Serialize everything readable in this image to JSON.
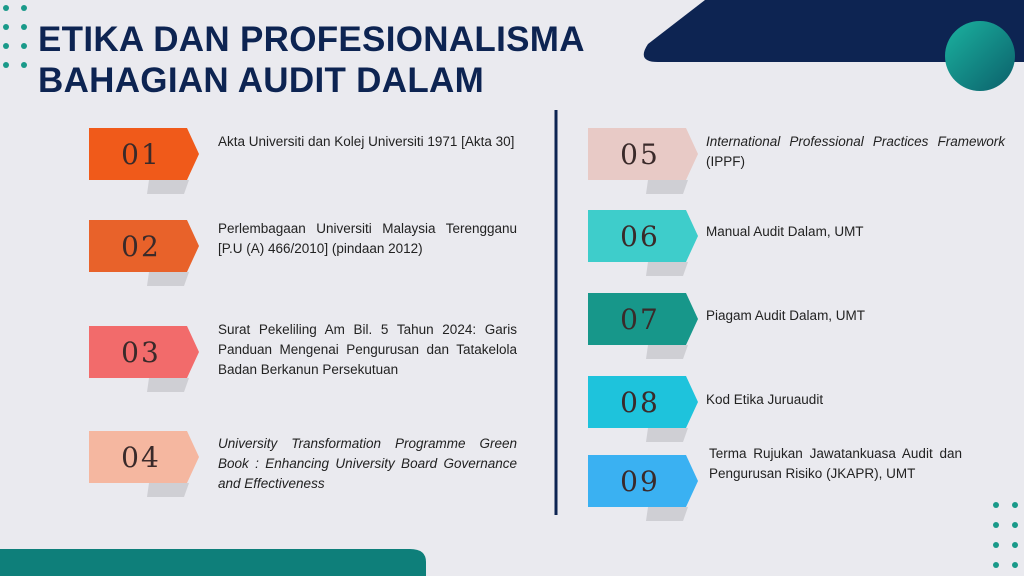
{
  "header": {
    "title": [
      "ETIKA DAN PROFESIONALISMA",
      "BAHAGIAN AUDIT DALAM"
    ]
  },
  "items": [
    {
      "number": "01",
      "text": "Akta Universiti dan Kolej Universiti 1971 [Akta 30]"
    },
    {
      "number": "02",
      "text": "Perlembagaan Universiti Malaysia Terengganu [P.U (A) 466/2010] (pindaan 2012)"
    },
    {
      "number": "03",
      "text": "Surat Pekeliling Am Bil. 5 Tahun 2024: Garis Panduan Mengenai Pengurusan dan Tatakelola Badan Berkanun Persekutuan"
    },
    {
      "number": "04",
      "italic": "University Transformation Programme Green Book : Enhancing University Board Governance and Effectiveness"
    },
    {
      "number": "05",
      "italic": "International Professional Practices Framework",
      "text": "(IPPF)"
    },
    {
      "number": "06",
      "text": "Manual Audit Dalam, UMT"
    },
    {
      "number": "07",
      "text": "Piagam Audit Dalam, UMT"
    },
    {
      "number": "08",
      "text": "Kod Etika Juruaudit"
    },
    {
      "number": "09",
      "text": "Terma Rujukan Jawatankuasa Audit dan Pengurusan Risiko (JKAPR), UMT"
    }
  ]
}
